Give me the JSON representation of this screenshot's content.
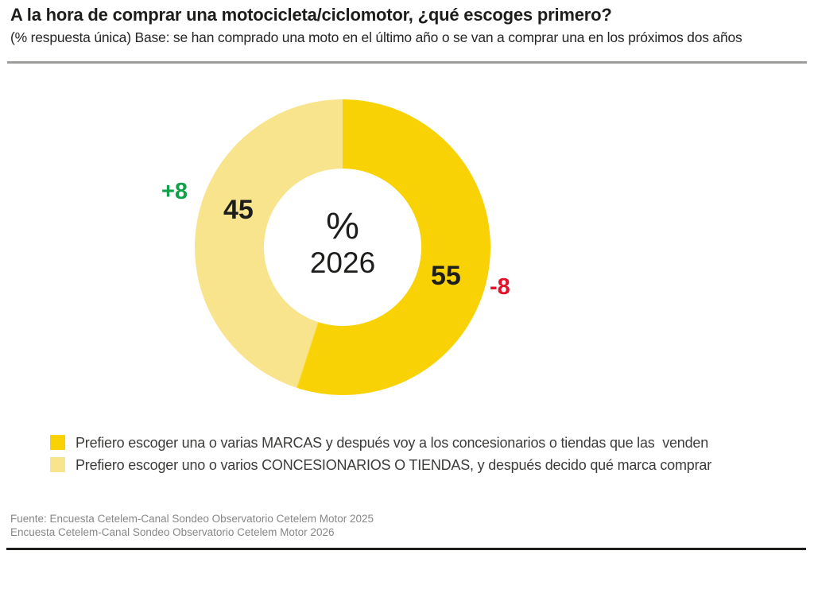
{
  "header": {
    "title": "A la hora de comprar una motocicleta/ciclomotor, ¿qué escoges primero?",
    "subtitle": "(% respuesta única) Base: se han comprado una moto en el último año o se van a comprar una en los próximos dos años"
  },
  "chart_data": {
    "type": "pie",
    "subtype": "donut",
    "title": "A la hora de comprar una motocicleta/ciclomotor, ¿qué escoges primero?",
    "center_label": "%",
    "center_year": "2026",
    "start_angle_deg": 0,
    "direction": "clockwise",
    "legend_position": "bottom",
    "segments": [
      {
        "name": "marcas",
        "label": "Prefiero escoger una o varias MARCAS y después voy a los concesionarios o tiendas que las  venden",
        "value": 55,
        "color": "#F8D204",
        "delta_vs_prev_year": "-8",
        "delta_color": "#E4112B"
      },
      {
        "name": "concesionarios-tiendas",
        "label": "Prefiero escoger uno o varios CONCESIONARIOS O TIENDAS, y después decido qué marca comprar",
        "value": 45,
        "color": "#F8E48C",
        "delta_vs_prev_year": "+8",
        "delta_color": "#12A04B"
      }
    ]
  },
  "footer": {
    "source_line1": "Fuente: Encuesta Cetelem-Canal Sondeo Observatorio Cetelem Motor 2025",
    "source_line2": "Encuesta Cetelem-Canal Sondeo Observatorio Cetelem Motor 2026"
  },
  "colors": {
    "text_dark": "#1D1D1B",
    "legend_text": "#3C3C3B",
    "source_text": "#878787",
    "divider_gray": "#9D9D9C",
    "divider_black": "#1D1D1B"
  }
}
